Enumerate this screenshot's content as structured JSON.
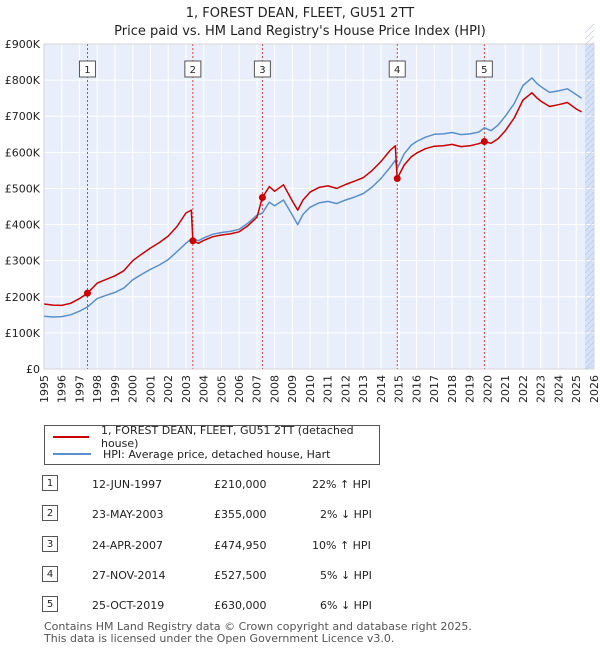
{
  "chart_data": {
    "type": "line",
    "title": "1, FOREST DEAN, FLEET, GU51 2TT",
    "subtitle": "Price paid vs. HM Land Registry's House Price Index (HPI)",
    "xlim": [
      1995,
      2026
    ],
    "ylim": [
      0,
      900000
    ],
    "x_ticks": [
      1995,
      1996,
      1997,
      1998,
      1999,
      2000,
      2001,
      2002,
      2003,
      2004,
      2005,
      2006,
      2007,
      2008,
      2009,
      2010,
      2011,
      2012,
      2013,
      2014,
      2015,
      2016,
      2017,
      2018,
      2019,
      2020,
      2021,
      2022,
      2023,
      2024,
      2025,
      2026
    ],
    "y_ticks": [
      {
        "value": 0,
        "label": "£0"
      },
      {
        "value": 100000,
        "label": "£100K"
      },
      {
        "value": 200000,
        "label": "£200K"
      },
      {
        "value": 300000,
        "label": "£300K"
      },
      {
        "value": 400000,
        "label": "£400K"
      },
      {
        "value": 500000,
        "label": "£500K"
      },
      {
        "value": 600000,
        "label": "£600K"
      },
      {
        "value": 700000,
        "label": "£700K"
      },
      {
        "value": 800000,
        "label": "£800K"
      },
      {
        "value": 900000,
        "label": "£900K"
      }
    ],
    "grid": true,
    "series": [
      {
        "name": "1, FOREST DEAN, FLEET, GU51 2TT (detached house)",
        "color": "#cc0000",
        "x": [
          1995.0,
          1995.5,
          1996.0,
          1996.5,
          1997.0,
          1997.45,
          1998.0,
          1998.5,
          1999.0,
          1999.5,
          2000.0,
          2000.5,
          2001.0,
          2001.5,
          2002.0,
          2002.5,
          2003.0,
          2003.3,
          2003.39,
          2003.7,
          2004.0,
          2004.5,
          2005.0,
          2005.5,
          2006.0,
          2006.5,
          2007.0,
          2007.31,
          2007.7,
          2008.0,
          2008.5,
          2009.0,
          2009.3,
          2009.6,
          2010.0,
          2010.5,
          2011.0,
          2011.5,
          2012.0,
          2012.5,
          2013.0,
          2013.5,
          2014.0,
          2014.5,
          2014.8,
          2014.91,
          2015.3,
          2015.7,
          2016.0,
          2016.5,
          2017.0,
          2017.5,
          2018.0,
          2018.5,
          2019.0,
          2019.5,
          2019.82,
          2020.2,
          2020.6,
          2021.0,
          2021.5,
          2022.0,
          2022.5,
          2022.8,
          2023.0,
          2023.5,
          2024.0,
          2024.5,
          2025.0,
          2025.3
        ],
        "y": [
          180000,
          177000,
          176000,
          182000,
          195000,
          210000,
          238000,
          248000,
          258000,
          272000,
          300000,
          318000,
          335000,
          350000,
          368000,
          395000,
          432000,
          440000,
          355000,
          348000,
          356000,
          366000,
          371000,
          374000,
          380000,
          397000,
          420000,
          474950,
          505000,
          492000,
          510000,
          465000,
          440000,
          468000,
          490000,
          503000,
          507000,
          500000,
          511000,
          520000,
          530000,
          550000,
          575000,
          605000,
          618000,
          527500,
          565000,
          588000,
          598000,
          610000,
          617000,
          618000,
          622000,
          616000,
          618000,
          624000,
          630000,
          625000,
          638000,
          660000,
          695000,
          745000,
          765000,
          750000,
          742000,
          727000,
          732000,
          738000,
          720000,
          712000
        ]
      },
      {
        "name": "HPI: Average price, detached house, Hart",
        "color": "#5b8fc9",
        "x": [
          1995.0,
          1995.5,
          1996.0,
          1996.5,
          1997.0,
          1997.45,
          1998.0,
          1998.5,
          1999.0,
          1999.5,
          2000.0,
          2000.5,
          2001.0,
          2001.5,
          2002.0,
          2002.5,
          2003.0,
          2003.3,
          2003.39,
          2003.7,
          2004.0,
          2004.5,
          2005.0,
          2005.5,
          2006.0,
          2006.5,
          2007.0,
          2007.31,
          2007.7,
          2008.0,
          2008.5,
          2009.0,
          2009.3,
          2009.6,
          2010.0,
          2010.5,
          2011.0,
          2011.5,
          2012.0,
          2012.5,
          2013.0,
          2013.5,
          2014.0,
          2014.5,
          2014.8,
          2014.91,
          2015.3,
          2015.7,
          2016.0,
          2016.5,
          2017.0,
          2017.5,
          2018.0,
          2018.5,
          2019.0,
          2019.5,
          2019.82,
          2020.2,
          2020.6,
          2021.0,
          2021.5,
          2022.0,
          2022.5,
          2022.8,
          2023.0,
          2023.5,
          2024.0,
          2024.5,
          2025.0,
          2025.3
        ],
        "y": [
          146000,
          144000,
          145000,
          150000,
          160000,
          172000,
          195000,
          204000,
          212000,
          224000,
          247000,
          262000,
          276000,
          288000,
          303000,
          325000,
          348000,
          360000,
          362000,
          355000,
          363000,
          373000,
          378000,
          381000,
          387000,
          404000,
          426000,
          432000,
          462000,
          452000,
          468000,
          426000,
          400000,
          428000,
          448000,
          460000,
          464000,
          458000,
          468000,
          476000,
          486000,
          504000,
          528000,
          558000,
          578000,
          555000,
          596000,
          620000,
          630000,
          642000,
          650000,
          651000,
          655000,
          649000,
          651000,
          656000,
          668000,
          660000,
          676000,
          700000,
          735000,
          785000,
          806000,
          790000,
          782000,
          766000,
          770000,
          776000,
          760000,
          750000
        ]
      }
    ],
    "sales": [
      {
        "n": "1",
        "x": 1997.45,
        "y": 210000,
        "date": "12-JUN-1997",
        "price": "£210,000",
        "hpi": "22% ↑ HPI"
      },
      {
        "n": "2",
        "x": 2003.39,
        "y": 355000,
        "date": "23-MAY-2003",
        "price": "£355,000",
        "hpi": "2% ↓ HPI"
      },
      {
        "n": "3",
        "x": 2007.31,
        "y": 474950,
        "date": "24-APR-2007",
        "price": "£474,950",
        "hpi": "10% ↑ HPI"
      },
      {
        "n": "4",
        "x": 2014.91,
        "y": 527500,
        "date": "27-NOV-2014",
        "price": "£527,500",
        "hpi": "5% ↓ HPI"
      },
      {
        "n": "5",
        "x": 2019.82,
        "y": 630000,
        "date": "25-OCT-2019",
        "price": "£630,000",
        "hpi": "6% ↓ HPI"
      }
    ],
    "future_start_x": 2025.5,
    "colors": {
      "grid": "#ffffff",
      "plot_bg": "#e8effb",
      "shade": "#d6e2f6",
      "marker": "#cc0000",
      "vline": "#cc3333"
    }
  },
  "footer": {
    "line1": "Contains HM Land Registry data © Crown copyright and database right 2025.",
    "line2": "This data is licensed under the Open Government Licence v3.0."
  }
}
